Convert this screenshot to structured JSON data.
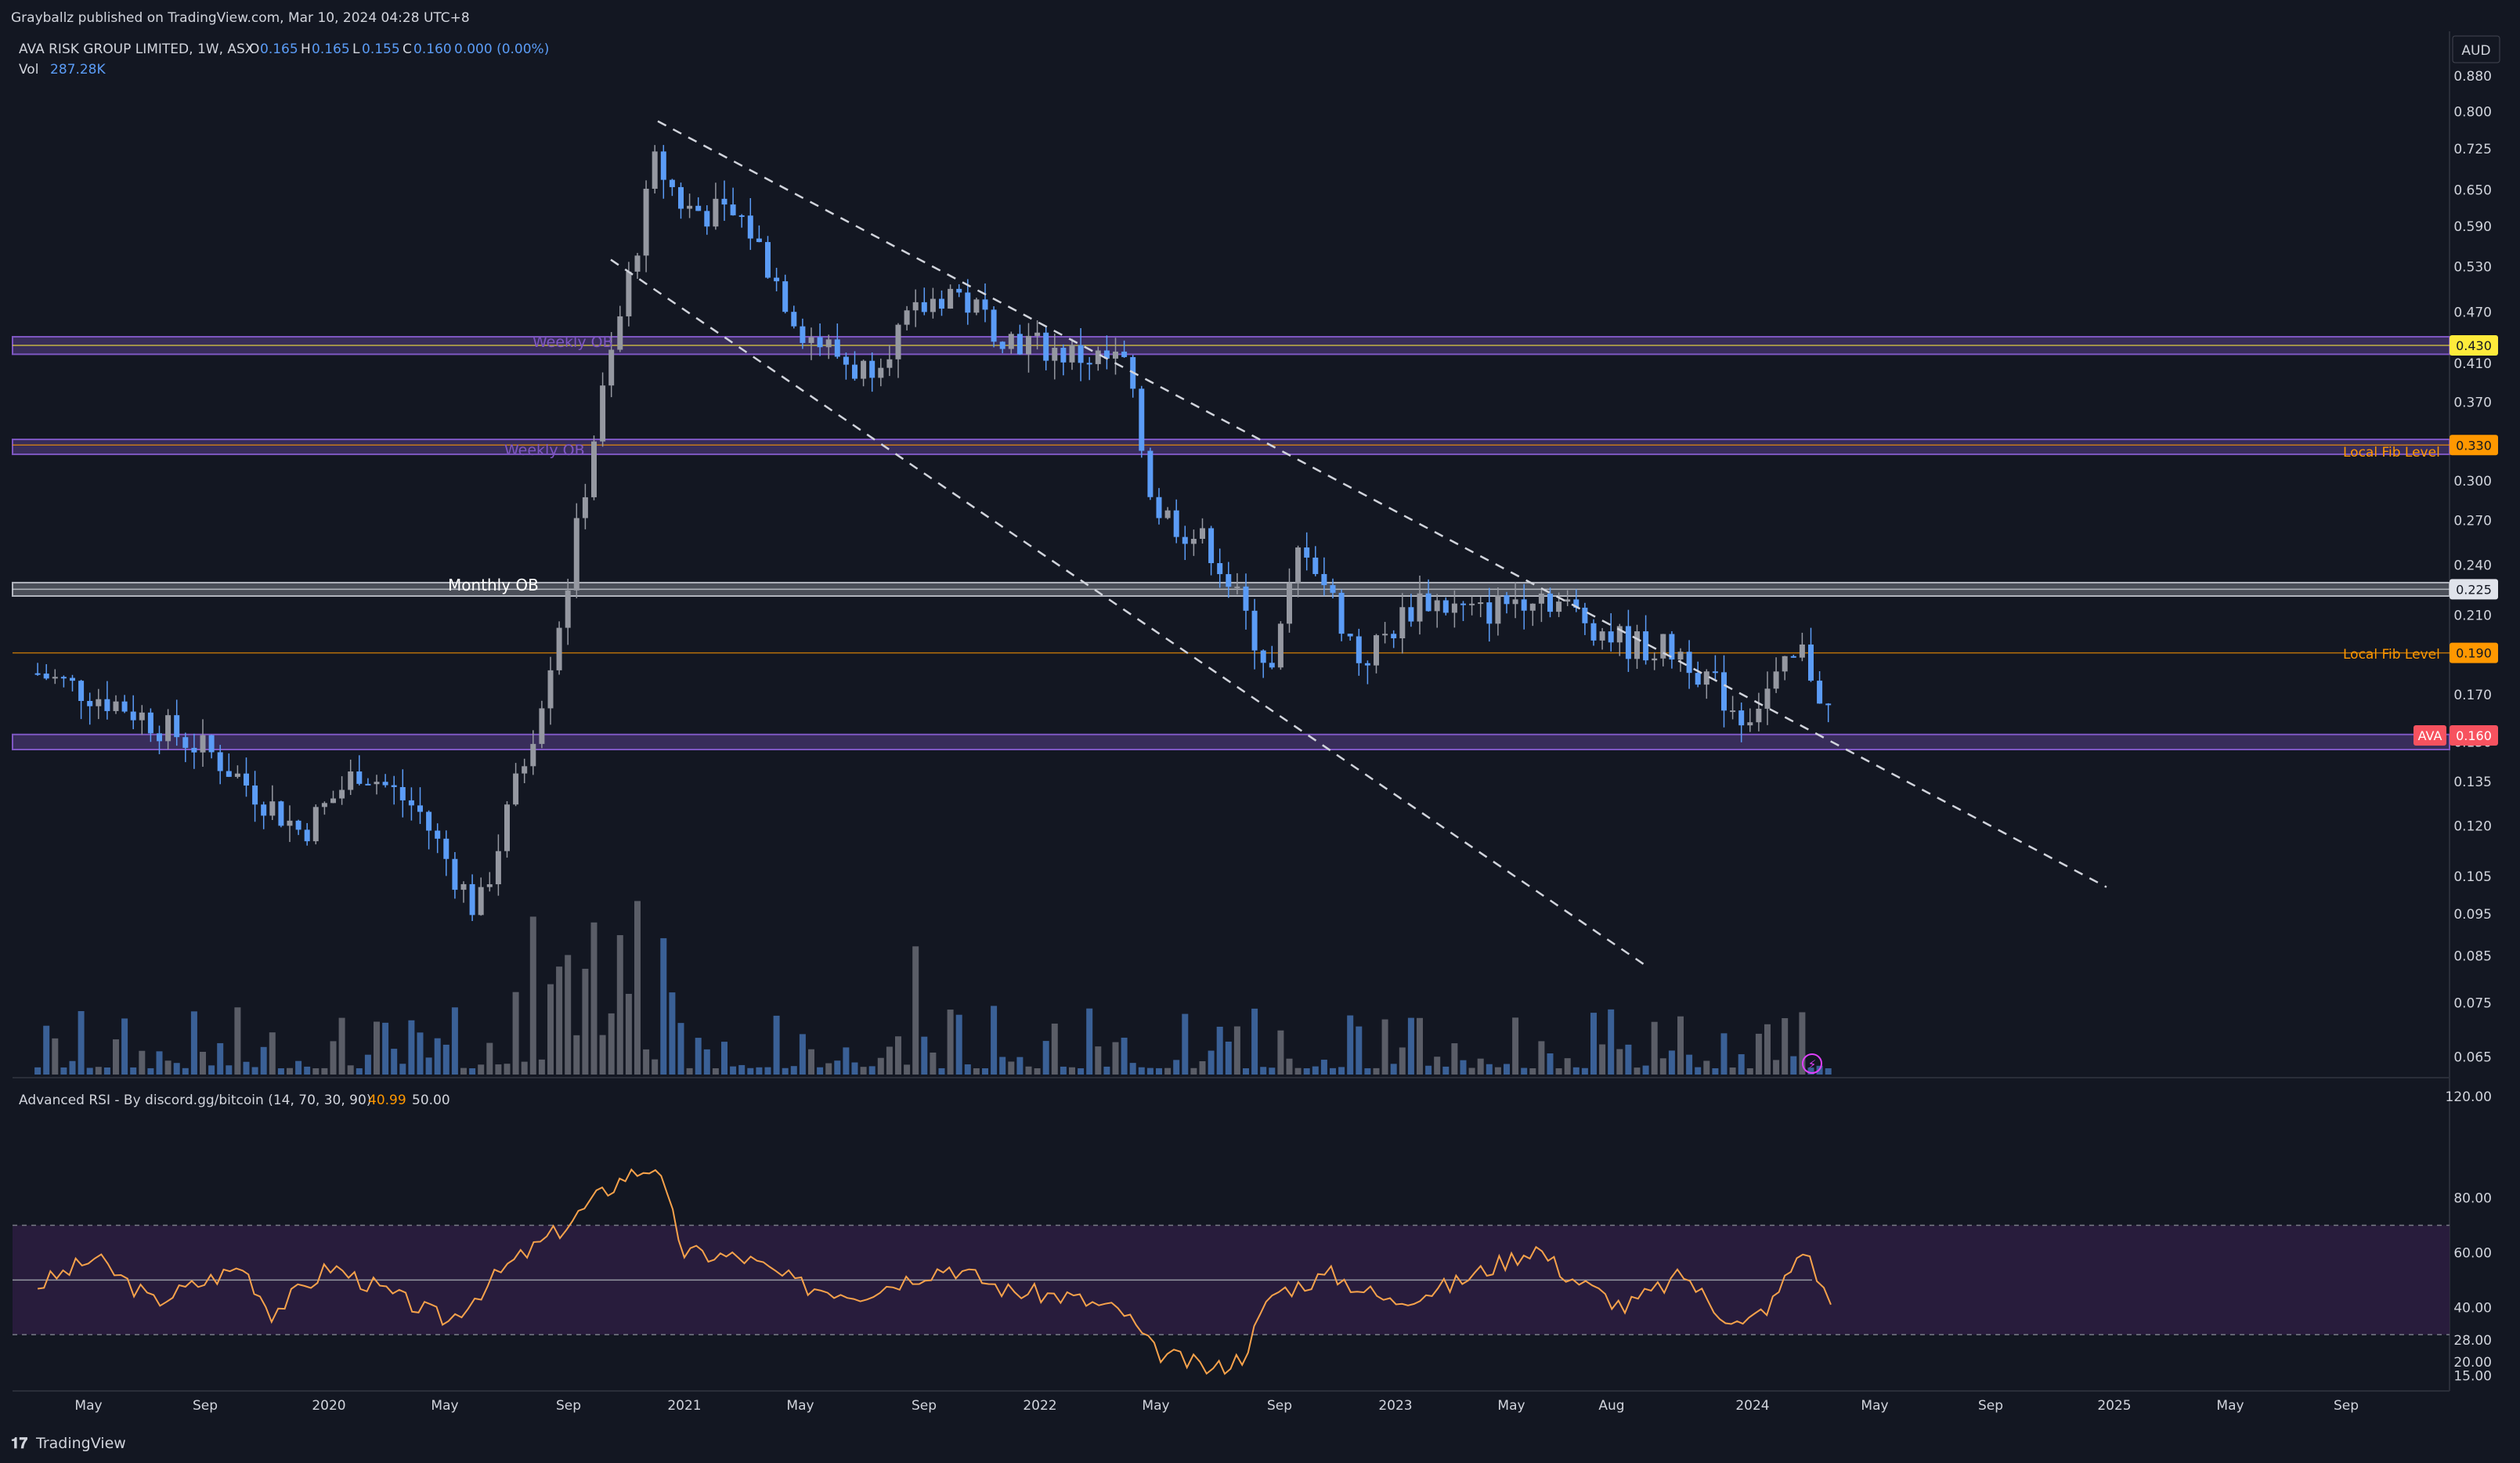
{
  "header": {
    "published": "Grayballz published on TradingView.com, Mar 10, 2024 04:28 UTC+8",
    "symbol": "AVA RISK GROUP LIMITED, 1W, ASX",
    "o_label": "O",
    "o_value": "0.165",
    "h_label": "H",
    "h_value": "0.165",
    "l_label": "L",
    "l_value": "0.155",
    "c_label": "C",
    "c_value": "0.160",
    "change": "0.000 (0.00%)",
    "vol_label": "Vol",
    "vol_value": "287.28K",
    "currency": "AUD"
  },
  "footer": {
    "brand": "TradingView"
  },
  "colors": {
    "bg": "#131722",
    "up": "#9598a1",
    "down": "#5b9cf6",
    "orange": "#ff9800",
    "purple": "#7e57c2",
    "rsi_line": "#f7a24b",
    "rsi_low": "#f23645",
    "price_badge": "#f7525f"
  },
  "chart_data": [
    {
      "type": "candlestick",
      "title": "AVA RISK GROUP LIMITED, 1W, ASX",
      "y_scale": "log",
      "ylim": [
        0.062,
        0.95
      ],
      "y_ticks": [
        "0.880",
        "0.800",
        "0.725",
        "0.650",
        "0.590",
        "0.530",
        "0.470",
        "0.410",
        "0.370",
        "0.330",
        "0.300",
        "0.270",
        "0.240",
        "0.210",
        "0.170",
        "0.150",
        "0.135",
        "0.120",
        "0.105",
        "0.095",
        "0.085",
        "0.075",
        "0.065"
      ],
      "x_ticks": [
        "May",
        "Sep",
        "2020",
        "May",
        "Sep",
        "2021",
        "May",
        "Sep",
        "2022",
        "May",
        "Sep",
        "2023",
        "May",
        "Aug",
        "2024",
        "May",
        "Sep",
        "2025",
        "May",
        "Sep"
      ],
      "last_price": 0.16,
      "last_label": "AVA",
      "trend": [
        {
          "x": "2019-02",
          "y": 0.18
        },
        {
          "x": "2019-05",
          "y": 0.165
        },
        {
          "x": "2019-08",
          "y": 0.145
        },
        {
          "x": "2019-11",
          "y": 0.118
        },
        {
          "x": "2020-01",
          "y": 0.14
        },
        {
          "x": "2020-03",
          "y": 0.125
        },
        {
          "x": "2020-05",
          "y": 0.095
        },
        {
          "x": "2020-07",
          "y": 0.16
        },
        {
          "x": "2020-08",
          "y": 0.225
        },
        {
          "x": "2020-09",
          "y": 0.35
        },
        {
          "x": "2020-11",
          "y": 0.7
        },
        {
          "x": "2020-12",
          "y": 0.62
        },
        {
          "x": "2021-02",
          "y": 0.6
        },
        {
          "x": "2021-04",
          "y": 0.45
        },
        {
          "x": "2021-06",
          "y": 0.4
        },
        {
          "x": "2021-08",
          "y": 0.47
        },
        {
          "x": "2021-09",
          "y": 0.5
        },
        {
          "x": "2021-11",
          "y": 0.44
        },
        {
          "x": "2022-01",
          "y": 0.42
        },
        {
          "x": "2022-03",
          "y": 0.41
        },
        {
          "x": "2022-04",
          "y": 0.28
        },
        {
          "x": "2022-06",
          "y": 0.25
        },
        {
          "x": "2022-08",
          "y": 0.18
        },
        {
          "x": "2022-09",
          "y": 0.26
        },
        {
          "x": "2022-11",
          "y": 0.185
        },
        {
          "x": "2023-01",
          "y": 0.22
        },
        {
          "x": "2023-03",
          "y": 0.21
        },
        {
          "x": "2023-05",
          "y": 0.225
        },
        {
          "x": "2023-08",
          "y": 0.195
        },
        {
          "x": "2023-10",
          "y": 0.19
        },
        {
          "x": "2023-12",
          "y": 0.16
        },
        {
          "x": "2024-02",
          "y": 0.19
        },
        {
          "x": "2024-03",
          "y": 0.16
        }
      ],
      "horizontal_lines": [
        {
          "price": 0.43,
          "label": "0.430",
          "color": "#ffeb3b"
        },
        {
          "price": 0.33,
          "label": "0.330",
          "color": "#ff9800"
        },
        {
          "price": 0.225,
          "label": "0.225",
          "color": "#e0e3eb"
        },
        {
          "price": 0.19,
          "label": "0.190",
          "color": "#ff9800"
        }
      ],
      "zones": [
        {
          "label": "Weekly OB",
          "top": 0.44,
          "bottom": 0.42,
          "color": "#7e57c2"
        },
        {
          "label": "Weekly OB",
          "top": 0.335,
          "bottom": 0.322,
          "color": "#7e57c2"
        },
        {
          "label": "Monthly OB",
          "top": 0.229,
          "bottom": 0.221,
          "color": "#b2b5be"
        },
        {
          "label": "",
          "top": 0.153,
          "bottom": 0.147,
          "color": "#7e57c2"
        }
      ],
      "annotations": [
        "Local Fib Level",
        "Local Fib Level"
      ]
    },
    {
      "type": "line",
      "title": "Advanced RSI - By discord.gg/bitcoin (14, 70, 30, 90)",
      "value": "40.99",
      "mid": "50.00",
      "ylim": [
        10,
        120
      ],
      "y_ticks": [
        "120.00",
        "80.00",
        "60.00",
        "40.00",
        "28.00",
        "20.00",
        "15.00"
      ],
      "bands": {
        "upper": 70,
        "middle": 50,
        "lower": 30
      },
      "series": [
        {
          "x": "2019-02",
          "y": 48
        },
        {
          "x": "2019-04",
          "y": 58
        },
        {
          "x": "2019-06",
          "y": 42
        },
        {
          "x": "2019-09",
          "y": 55
        },
        {
          "x": "2019-10",
          "y": 38
        },
        {
          "x": "2019-12",
          "y": 55
        },
        {
          "x": "2020-01",
          "y": 50
        },
        {
          "x": "2020-03",
          "y": 40
        },
        {
          "x": "2020-04",
          "y": 35
        },
        {
          "x": "2020-06",
          "y": 55
        },
        {
          "x": "2020-08",
          "y": 70
        },
        {
          "x": "2020-09",
          "y": 80
        },
        {
          "x": "2020-10",
          "y": 88
        },
        {
          "x": "2020-11",
          "y": 92
        },
        {
          "x": "2020-12",
          "y": 60
        },
        {
          "x": "2021-02",
          "y": 58
        },
        {
          "x": "2021-04",
          "y": 48
        },
        {
          "x": "2021-06",
          "y": 45
        },
        {
          "x": "2021-08",
          "y": 52
        },
        {
          "x": "2021-09",
          "y": 55
        },
        {
          "x": "2021-11",
          "y": 46
        },
        {
          "x": "2022-01",
          "y": 44
        },
        {
          "x": "2022-03",
          "y": 38
        },
        {
          "x": "2022-04",
          "y": 24
        },
        {
          "x": "2022-06",
          "y": 17
        },
        {
          "x": "2022-07",
          "y": 22
        },
        {
          "x": "2022-08",
          "y": 45
        },
        {
          "x": "2022-10",
          "y": 52
        },
        {
          "x": "2022-12",
          "y": 42
        },
        {
          "x": "2023-02",
          "y": 48
        },
        {
          "x": "2023-05",
          "y": 62
        },
        {
          "x": "2023-06",
          "y": 52
        },
        {
          "x": "2023-08",
          "y": 40
        },
        {
          "x": "2023-10",
          "y": 52
        },
        {
          "x": "2023-11",
          "y": 40
        },
        {
          "x": "2023-12",
          "y": 33
        },
        {
          "x": "2024-01",
          "y": 42
        },
        {
          "x": "2024-02",
          "y": 62
        },
        {
          "x": "2024-03",
          "y": 41
        }
      ]
    }
  ]
}
